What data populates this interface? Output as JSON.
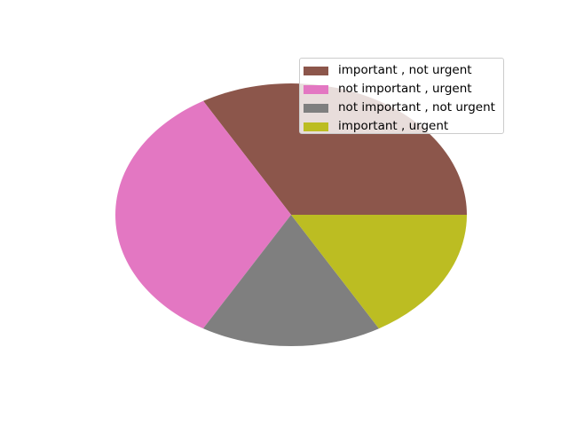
{
  "chart_data": {
    "type": "pie",
    "title": "",
    "slices": [
      {
        "label": "important , not urgent",
        "value": 33.33,
        "color": "#8c564b"
      },
      {
        "label": "not important , urgent",
        "value": 33.33,
        "color": "#e377c2"
      },
      {
        "label": "not important , not urgent",
        "value": 16.67,
        "color": "#7f7f7f"
      },
      {
        "label": "important , urgent",
        "value": 16.67,
        "color": "#bcbd22"
      }
    ],
    "start_angle_deg": 0,
    "direction": "counterclockwise",
    "legend_position": "top-right"
  }
}
